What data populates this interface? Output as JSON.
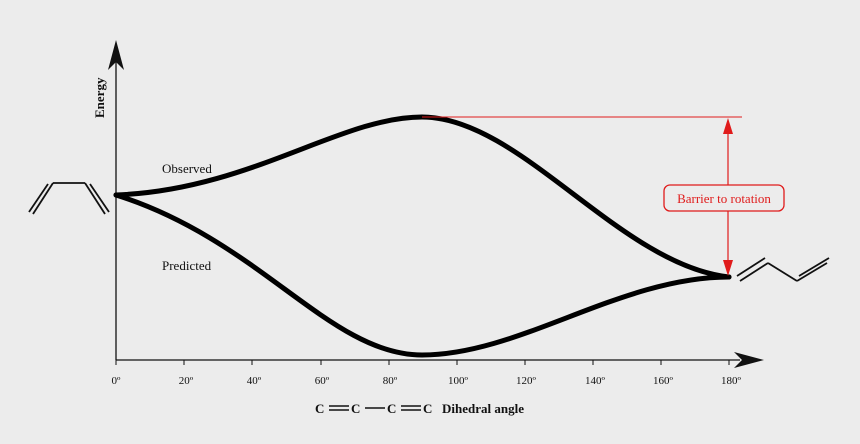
{
  "axes": {
    "y_label": "Energy",
    "x_label_formula": [
      "C",
      "C",
      "C",
      "C"
    ],
    "x_label": "Dihedral angle",
    "x_ticks": [
      "0º",
      "20º",
      "40º",
      "60º",
      "80º",
      "100º",
      "120º",
      "140º",
      "160º",
      "180º"
    ]
  },
  "curves": {
    "observed_label": "Observed",
    "predicted_label": "Predicted"
  },
  "annotation": {
    "barrier_label": "Barrier to rotation",
    "color": "#e01b1b"
  },
  "colors": {
    "curve": "#000000",
    "background": "#ececec"
  }
}
